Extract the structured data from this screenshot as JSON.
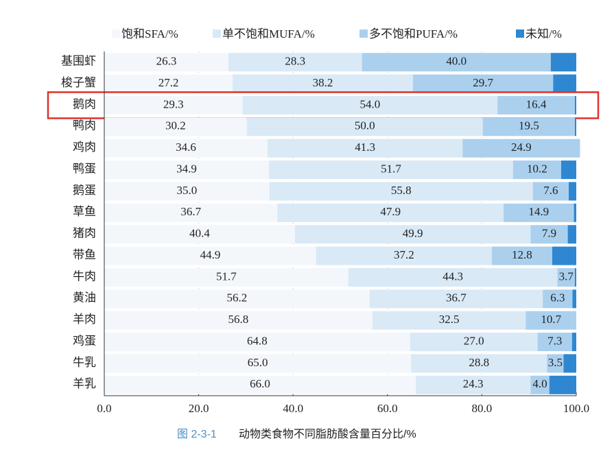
{
  "chart_data": {
    "type": "stacked-barh",
    "caption_number": "图 2-3-1",
    "caption": "动物类食物不同脂肪酸含量百分比/%",
    "categories": [
      "基围虾",
      "梭子蟹",
      "鹅肉",
      "鸭肉",
      "鸡肉",
      "鸭蛋",
      "鹅蛋",
      "草鱼",
      "猪肉",
      "带鱼",
      "牛肉",
      "黄油",
      "羊肉",
      "鸡蛋",
      "牛乳",
      "羊乳"
    ],
    "series": [
      {
        "name": "饱和SFA/%",
        "color": "#f3f7fb",
        "label_color": "#222",
        "values": [
          26.3,
          27.2,
          29.3,
          30.2,
          34.6,
          34.9,
          35.0,
          36.7,
          40.4,
          44.9,
          51.7,
          56.2,
          56.8,
          64.8,
          65.0,
          66.0
        ],
        "value_labels": [
          "26.3",
          "27.2",
          "29.3",
          "30.2",
          "34.6",
          "34.9",
          "35.0",
          "36.7",
          "40.4",
          "44.9",
          "51.7",
          "56.2",
          "56.8",
          "64.8",
          "65.0",
          "66.0"
        ]
      },
      {
        "name": "单不饱和MUFA/%",
        "color": "#d9e9f6",
        "label_color": "#222",
        "values": [
          28.3,
          38.2,
          54.0,
          50.0,
          41.3,
          51.7,
          55.8,
          47.9,
          49.9,
          37.2,
          44.3,
          36.7,
          32.5,
          27.0,
          28.8,
          24.3
        ],
        "value_labels": [
          "28.3",
          "38.2",
          "54.0",
          "50.0",
          "41.3",
          "51.7",
          "55.8",
          "47.9",
          "49.9",
          "37.2",
          "44.3",
          "36.7",
          "32.5",
          "27.0",
          "28.8",
          "24.3"
        ]
      },
      {
        "name": "多不饱和PUFA/%",
        "color": "#abd0ee",
        "label_color": "#ffffff",
        "values": [
          40.0,
          29.7,
          16.4,
          19.5,
          24.9,
          10.2,
          7.6,
          14.9,
          7.9,
          12.8,
          3.7,
          6.3,
          10.7,
          7.3,
          3.5,
          4.0
        ],
        "value_labels": [
          "40.0",
          "29.7",
          "16.4",
          "19.5",
          "24.9",
          "10.2",
          "7.6",
          "14.9",
          "7.9",
          "12.8",
          "3.7",
          "6.3",
          "10.7",
          "7.3",
          "3.5",
          "4.0"
        ]
      },
      {
        "name": "未知/%",
        "color": "#2f87d1",
        "values": [
          5.4,
          4.9,
          0.3,
          0.3,
          0,
          3.2,
          1.6,
          0.5,
          1.8,
          5.1,
          0.3,
          0.8,
          0,
          0.9,
          2.7,
          5.7
        ]
      }
    ],
    "xlim": [
      0,
      100
    ],
    "xticks": [
      {
        "value": 0,
        "label": "0.0"
      },
      {
        "value": 20,
        "label": "20.0"
      },
      {
        "value": 40,
        "label": "40.0"
      },
      {
        "value": 60,
        "label": "60.0"
      },
      {
        "value": 80,
        "label": "80.0"
      },
      {
        "value": 100,
        "label": "100.0"
      }
    ],
    "grid": true,
    "highlight_category": "鹅肉",
    "highlight_color": "#e0302a"
  }
}
